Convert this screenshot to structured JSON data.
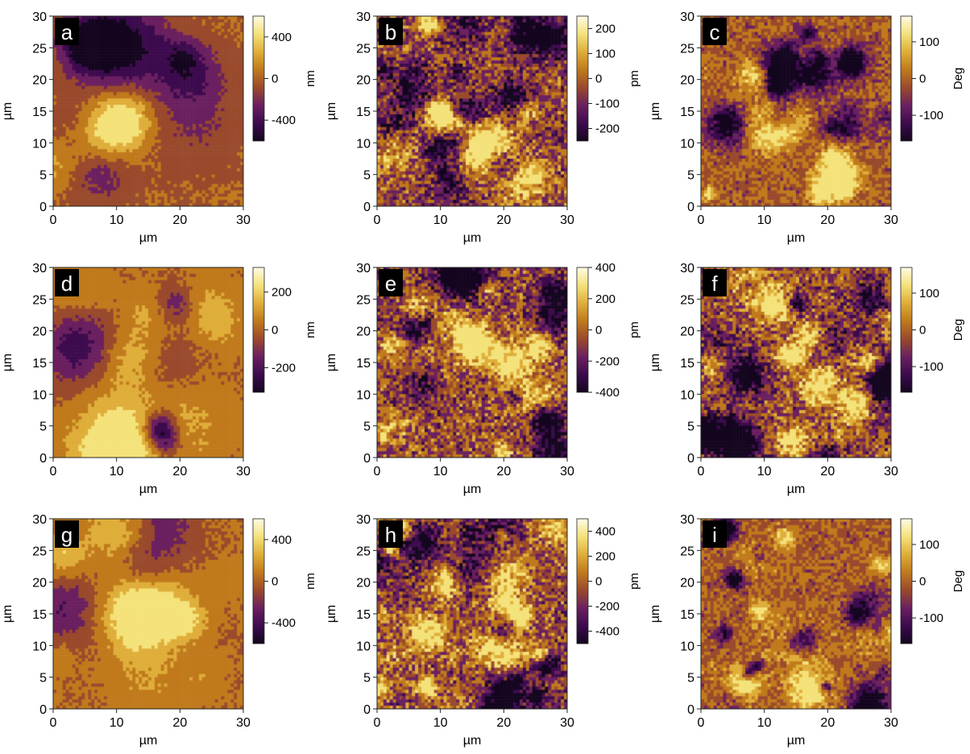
{
  "chart_data": [
    {
      "type": "heatmap",
      "panel_label": "a",
      "xlabel": "µm",
      "ylabel": "µm",
      "xlim": [
        0,
        30
      ],
      "ylim": [
        0,
        30
      ],
      "x_ticks": [
        0,
        10,
        20,
        30
      ],
      "y_ticks": [
        0,
        5,
        10,
        15,
        20,
        25,
        30
      ],
      "colorbar": {
        "unit": "nm",
        "range": [
          -600,
          600
        ],
        "ticks": [
          400,
          0,
          -400
        ]
      },
      "pattern": "topo"
    },
    {
      "type": "heatmap",
      "panel_label": "b",
      "xlabel": "µm",
      "ylabel": "µm",
      "xlim": [
        0,
        30
      ],
      "ylim": [
        0,
        30
      ],
      "x_ticks": [
        0,
        10,
        20,
        30
      ],
      "y_ticks": [
        0,
        5,
        10,
        15,
        20,
        25,
        30
      ],
      "colorbar": {
        "unit": "pm",
        "range": [
          -250,
          250
        ],
        "ticks": [
          200,
          100,
          0,
          -100,
          -200
        ]
      },
      "pattern": "grain"
    },
    {
      "type": "heatmap",
      "panel_label": "c",
      "xlabel": "µm",
      "ylabel": "µm",
      "xlim": [
        0,
        30
      ],
      "ylim": [
        0,
        30
      ],
      "x_ticks": [
        0,
        10,
        20,
        30
      ],
      "y_ticks": [
        0,
        5,
        10,
        15,
        20,
        25,
        30
      ],
      "colorbar": {
        "unit": "Deg",
        "range": [
          -170,
          170
        ],
        "ticks": [
          100,
          0,
          -100
        ]
      },
      "pattern": "phase"
    },
    {
      "type": "heatmap",
      "panel_label": "d",
      "xlabel": "µm",
      "ylabel": "µm",
      "xlim": [
        0,
        30
      ],
      "ylim": [
        0,
        30
      ],
      "x_ticks": [
        0,
        10,
        20,
        30
      ],
      "y_ticks": [
        0,
        5,
        10,
        15,
        20,
        25,
        30
      ],
      "colorbar": {
        "unit": "nm",
        "range": [
          -330,
          330
        ],
        "ticks": [
          200,
          0,
          -200
        ]
      },
      "pattern": "topo"
    },
    {
      "type": "heatmap",
      "panel_label": "e",
      "xlabel": "µm",
      "ylabel": "µm",
      "xlim": [
        0,
        30
      ],
      "ylim": [
        0,
        30
      ],
      "x_ticks": [
        0,
        10,
        20,
        30
      ],
      "y_ticks": [
        0,
        5,
        10,
        15,
        20,
        25,
        30
      ],
      "colorbar": {
        "unit": "pm",
        "range": [
          -400,
          400
        ],
        "ticks": [
          400,
          200,
          0,
          -200,
          -400
        ]
      },
      "pattern": "grain"
    },
    {
      "type": "heatmap",
      "panel_label": "f",
      "xlabel": "µm",
      "ylabel": "µm",
      "xlim": [
        0,
        30
      ],
      "ylim": [
        0,
        30
      ],
      "x_ticks": [
        0,
        10,
        20,
        30
      ],
      "y_ticks": [
        0,
        5,
        10,
        15,
        20,
        25,
        30
      ],
      "colorbar": {
        "unit": "Deg",
        "range": [
          -170,
          170
        ],
        "ticks": [
          100,
          0,
          -100
        ]
      },
      "pattern": "grain"
    },
    {
      "type": "heatmap",
      "panel_label": "g",
      "xlabel": "µm",
      "ylabel": "µm",
      "xlim": [
        0,
        30
      ],
      "ylim": [
        0,
        30
      ],
      "x_ticks": [
        0,
        10,
        20,
        30
      ],
      "y_ticks": [
        0,
        5,
        10,
        15,
        20,
        25,
        30
      ],
      "colorbar": {
        "unit": "nm",
        "range": [
          -600,
          600
        ],
        "ticks": [
          400,
          0,
          -400
        ]
      },
      "pattern": "topo"
    },
    {
      "type": "heatmap",
      "panel_label": "h",
      "xlabel": "µm",
      "ylabel": "µm",
      "xlim": [
        0,
        30
      ],
      "ylim": [
        0,
        30
      ],
      "x_ticks": [
        0,
        10,
        20,
        30
      ],
      "y_ticks": [
        0,
        5,
        10,
        15,
        20,
        25,
        30
      ],
      "colorbar": {
        "unit": "pm",
        "range": [
          -500,
          500
        ],
        "ticks": [
          400,
          200,
          0,
          -200,
          -400
        ]
      },
      "pattern": "grain"
    },
    {
      "type": "heatmap",
      "panel_label": "i",
      "xlabel": "µm",
      "ylabel": "µm",
      "xlim": [
        0,
        30
      ],
      "ylim": [
        0,
        30
      ],
      "x_ticks": [
        0,
        10,
        20,
        30
      ],
      "y_ticks": [
        0,
        5,
        10,
        15,
        20,
        25,
        30
      ],
      "colorbar": {
        "unit": "Deg",
        "range": [
          -170,
          170
        ],
        "ticks": [
          100,
          0,
          -100
        ]
      },
      "pattern": "phase"
    }
  ],
  "colormap": [
    "#14061f",
    "#3d0b4e",
    "#6b2060",
    "#9a4a2c",
    "#c07a1c",
    "#dfae3a",
    "#f4e27a",
    "#fffbe6"
  ]
}
